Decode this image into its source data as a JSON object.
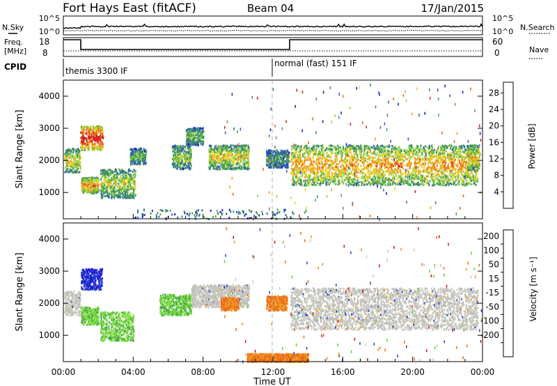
{
  "header": {
    "station": "Fort Hays East (fitACF)",
    "beam": "Beam 04",
    "date": "17/Jan/2015"
  },
  "top_panels": {
    "nsky_label": "N.Sky",
    "nsearch_label": "N.Search",
    "noise_ticks_left": [
      "10^5",
      "10^0"
    ],
    "noise_ticks_right": [
      "10^5",
      "10^0"
    ],
    "freq_label_line1": "Freq.",
    "freq_label_line2": "[MHz]",
    "freq_ticks": [
      "18",
      "8"
    ],
    "nave_label": "Nave",
    "nave_ticks": [
      "60",
      "0"
    ],
    "cpid_label": "CPID",
    "cpid_segments": [
      {
        "label": "themis 3300 IF",
        "start_hour": 0
      },
      {
        "label": "normal (fast) 151 IF",
        "start_hour": 12
      }
    ]
  },
  "chart_data": [
    {
      "type": "heatmap",
      "title": "",
      "ylabel": "Slant Range [km]",
      "xlabel": "",
      "xlim_hours": [
        0,
        24
      ],
      "ylim": [
        180,
        4500
      ],
      "ytick_labels": [
        "1000",
        "2000",
        "3000",
        "4000"
      ],
      "yticks": [
        1000,
        2000,
        3000,
        4000
      ],
      "colorbar": {
        "label": "Power [dB]",
        "ticks": [
          "4",
          "8",
          "12",
          "16",
          "20",
          "24",
          "28"
        ],
        "range": [
          0,
          30
        ],
        "colors": [
          "#1c1cd8",
          "#2f5fb4",
          "#3f8a6a",
          "#4caa4c",
          "#9ad24a",
          "#f0d020",
          "#f0a020",
          "#e86a18",
          "#d82418"
        ]
      }
    },
    {
      "type": "heatmap",
      "title": "",
      "ylabel": "Slant Range [km]",
      "xlabel": "Time UT",
      "xlim_hours": [
        0,
        24
      ],
      "ylim": [
        180,
        4500
      ],
      "xtick_labels": [
        "00:00",
        "04:00",
        "08:00",
        "12:00",
        "16:00",
        "20:00",
        "00:00"
      ],
      "xticks_hours": [
        0,
        4,
        8,
        12,
        16,
        20,
        24
      ],
      "ytick_labels": [
        "1000",
        "2000",
        "3000",
        "4000"
      ],
      "yticks": [
        1000,
        2000,
        3000,
        4000
      ],
      "colorbar": {
        "label": "Velocity [m s⁻¹]",
        "ticks": [
          "200",
          "100",
          "50",
          "15",
          "-15",
          "-50",
          "-100",
          "-200"
        ],
        "colors": [
          "#1c1cd8",
          "#2f5fb4",
          "#3f8a6a",
          "#6ad43a",
          "#c8c8c0",
          "#f0a020",
          "#f07020",
          "#e84020",
          "#d81818"
        ]
      }
    }
  ],
  "scatter_regions": {
    "power": [
      {
        "t": [
          0.05,
          0.95
        ],
        "r": [
          1650,
          2400
        ],
        "level": 0.45
      },
      {
        "t": [
          0.95,
          2.25
        ],
        "r": [
          2350,
          3100
        ],
        "level": 0.8
      },
      {
        "t": [
          1.0,
          2.0
        ],
        "r": [
          1000,
          1500
        ],
        "level": 0.55
      },
      {
        "t": [
          2.1,
          4.1
        ],
        "r": [
          850,
          1750
        ],
        "level": 0.4
      },
      {
        "t": [
          3.8,
          4.7
        ],
        "r": [
          1900,
          2400
        ],
        "level": 0.3
      },
      {
        "t": [
          6.2,
          7.3
        ],
        "r": [
          1750,
          2500
        ],
        "level": 0.35
      },
      {
        "t": [
          7.0,
          8.0
        ],
        "r": [
          2500,
          3050
        ],
        "level": 0.3
      },
      {
        "t": [
          8.3,
          10.6
        ],
        "r": [
          1750,
          2500
        ],
        "level": 0.45
      },
      {
        "t": [
          11.6,
          12.9
        ],
        "r": [
          1800,
          2350
        ],
        "level": 0.25
      },
      {
        "t": [
          13.0,
          23.7
        ],
        "r": [
          1250,
          2500
        ],
        "level": 0.55
      },
      {
        "t": [
          23.1,
          23.8
        ],
        "r": [
          1700,
          2500
        ],
        "level": 0.5
      }
    ],
    "velocity": [
      {
        "t": [
          0.05,
          0.95
        ],
        "r": [
          1650,
          2400
        ],
        "v": "gray"
      },
      {
        "t": [
          1.0,
          2.2
        ],
        "r": [
          2450,
          3100
        ],
        "v": "blue"
      },
      {
        "t": [
          1.0,
          2.0
        ],
        "r": [
          1350,
          1900
        ],
        "v": "green"
      },
      {
        "t": [
          2.1,
          4.0
        ],
        "r": [
          850,
          1750
        ],
        "v": "green"
      },
      {
        "t": [
          5.5,
          7.3
        ],
        "r": [
          1650,
          2300
        ],
        "v": "green"
      },
      {
        "t": [
          7.3,
          10.6
        ],
        "r": [
          1900,
          2600
        ],
        "v": "gray"
      },
      {
        "t": [
          9.0,
          10.0
        ],
        "r": [
          1800,
          2200
        ],
        "v": "orange"
      },
      {
        "t": [
          11.6,
          12.8
        ],
        "r": [
          1800,
          2250
        ],
        "v": "orange"
      },
      {
        "t": [
          13.0,
          23.7
        ],
        "r": [
          1200,
          2500
        ],
        "v": "gray"
      },
      {
        "t": [
          10.5,
          14.0
        ],
        "r": [
          200,
          450
        ],
        "v": "orange"
      }
    ]
  },
  "colors": {
    "frame": "#000000",
    "dash_line": "#b4b4b4",
    "vel_gray": "#c8c8c0"
  }
}
